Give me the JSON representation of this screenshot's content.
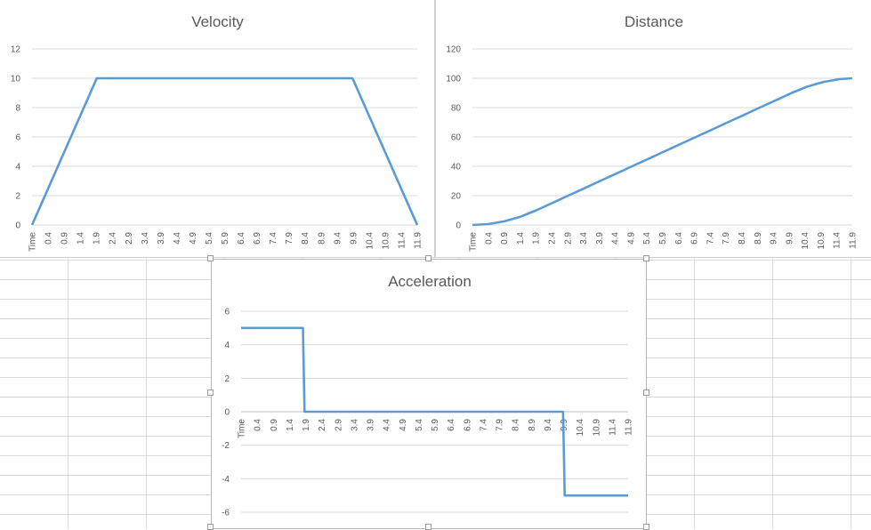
{
  "chart_data": [
    {
      "id": "velocity",
      "type": "line",
      "title": "Velocity",
      "xlabel": "",
      "ylabel": "",
      "ylim": [
        0,
        12
      ],
      "yticks": [
        0,
        2,
        4,
        6,
        8,
        10,
        12
      ],
      "categories": [
        "Time",
        "0.4",
        "0.9",
        "1.4",
        "1.9",
        "2.4",
        "2.9",
        "3.4",
        "3.9",
        "4.4",
        "4.9",
        "5.4",
        "5.9",
        "6.4",
        "6.9",
        "7.4",
        "7.9",
        "8.4",
        "8.9",
        "9.4",
        "9.9",
        "10.4",
        "10.9",
        "11.4",
        "11.9"
      ],
      "x": [
        0,
        0.1,
        0.2,
        0.3,
        0.4,
        0.5,
        0.6,
        0.7,
        0.8,
        0.9,
        1,
        1.1,
        1.2,
        1.3,
        1.4,
        1.5,
        1.6,
        1.7,
        1.8,
        1.9,
        2,
        2.5,
        3,
        3.5,
        4,
        4.5,
        5,
        5.5,
        6,
        6.5,
        7,
        7.5,
        8,
        8.5,
        9,
        9.5,
        9.9,
        10,
        10.1,
        10.2,
        10.3,
        10.4,
        10.5,
        10.6,
        10.7,
        10.8,
        10.9,
        11,
        11.1,
        11.2,
        11.3,
        11.4,
        11.5,
        11.6,
        11.7,
        11.8,
        11.9
      ],
      "series": [
        {
          "values": [
            0,
            0.5,
            1,
            1.5,
            2,
            2.5,
            3,
            3.5,
            4,
            4.5,
            5,
            5.5,
            6,
            6.5,
            7,
            7.5,
            8,
            8.5,
            9,
            9.5,
            10,
            10,
            10,
            10,
            10,
            10,
            10,
            10,
            10,
            10,
            10,
            10,
            10,
            10,
            10,
            10,
            10,
            9.5,
            9,
            8.5,
            8,
            7.5,
            7,
            6.5,
            6,
            5.5,
            5,
            4.5,
            4,
            3.5,
            3,
            2.5,
            2,
            1.5,
            1,
            0.5,
            0
          ]
        }
      ],
      "grid": true,
      "legend": "none"
    },
    {
      "id": "distance",
      "type": "line",
      "title": "Distance",
      "xlabel": "",
      "ylabel": "",
      "ylim": [
        0,
        120
      ],
      "yticks": [
        0,
        20,
        40,
        60,
        80,
        100,
        120
      ],
      "categories": [
        "Time",
        "0.4",
        "0.9",
        "1.4",
        "1.9",
        "2.4",
        "2.9",
        "3.4",
        "3.9",
        "4.4",
        "4.9",
        "5.4",
        "5.9",
        "6.4",
        "6.9",
        "7.4",
        "7.9",
        "8.4",
        "8.9",
        "9.4",
        "9.9",
        "10.4",
        "10.9",
        "11.4",
        "11.9"
      ],
      "x": [
        0,
        0.5,
        1,
        1.5,
        2,
        2.5,
        3,
        3.5,
        4,
        4.5,
        5,
        5.5,
        6,
        6.5,
        7,
        7.5,
        8,
        8.5,
        9,
        9.5,
        10,
        10.5,
        11,
        11.5,
        11.9
      ],
      "series": [
        {
          "values": [
            0,
            0.6,
            2.5,
            5.6,
            10,
            15,
            20,
            25,
            30,
            35,
            40,
            45,
            50,
            55,
            60,
            65,
            70,
            75,
            80,
            85,
            90,
            94.4,
            97.5,
            99.4,
            100
          ]
        }
      ],
      "grid": true,
      "legend": "none"
    },
    {
      "id": "acceleration",
      "type": "line",
      "title": "Acceleration",
      "xlabel": "",
      "ylabel": "",
      "ylim": [
        -6,
        6
      ],
      "yticks": [
        -6,
        -4,
        -2,
        0,
        2,
        4,
        6
      ],
      "categories": [
        "Time",
        "0.4",
        "0.9",
        "1.4",
        "1.9",
        "2.4",
        "2.9",
        "3.4",
        "3.9",
        "4.4",
        "4.9",
        "5.4",
        "5.9",
        "6.4",
        "6.9",
        "7.4",
        "7.9",
        "8.4",
        "8.9",
        "9.4",
        "9.9",
        "10.4",
        "10.9",
        "11.4",
        "11.9"
      ],
      "x": [
        0,
        1.9,
        1.95,
        9.9,
        9.95,
        11.9
      ],
      "series": [
        {
          "values": [
            5,
            5,
            0,
            0,
            -5,
            -5
          ]
        }
      ],
      "grid": true,
      "legend": "none"
    }
  ],
  "colors": {
    "series": "#5b9bd5",
    "grid": "#d9d9d9",
    "text": "#595959"
  }
}
